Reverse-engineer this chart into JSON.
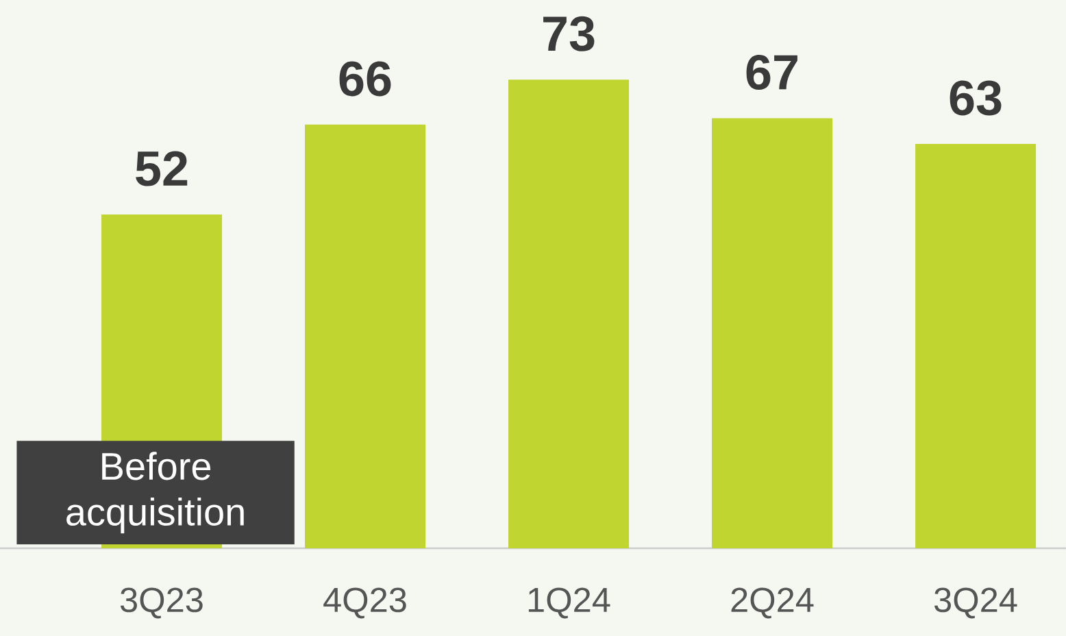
{
  "chart_data": {
    "type": "bar",
    "categories": [
      "3Q23",
      "4Q23",
      "1Q24",
      "2Q24",
      "3Q24"
    ],
    "values": [
      52,
      66,
      73,
      67,
      63
    ],
    "color": "#c0d530",
    "data_labels": true,
    "annotations": [
      "Before acquisition"
    ]
  }
}
